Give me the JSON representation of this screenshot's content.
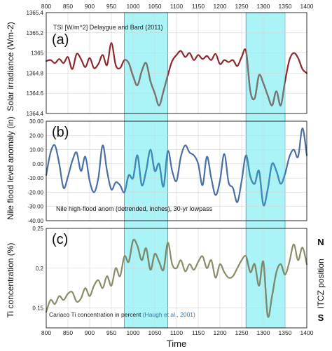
{
  "figure": {
    "x_axis_label": "Time",
    "x_ticks": [
      800,
      850,
      900,
      950,
      1000,
      1050,
      1100,
      1150,
      1200,
      1250,
      1300,
      1350,
      1400
    ],
    "shaded_periods": [
      [
        980,
        1080
      ],
      [
        1260,
        1350
      ]
    ],
    "colors": {
      "shade_fill": "#aaf3f6",
      "shade_edge": "#2aa6b5",
      "grid": "#d4d4d4",
      "frame": "#000000"
    },
    "itcz_label": "ITCZ position",
    "itcz_north": "N",
    "itcz_south": "S"
  },
  "chart_data": [
    {
      "type": "line",
      "panel_label": "(a)",
      "annotation": "TSI [W/m^2] Delaygue and Bard (2011)",
      "ylabel": "Solar irradiance (Wm-2)",
      "ylim": [
        1364.4,
        1365.4
      ],
      "yticks": [
        "1364.4",
        "1364.6",
        "1364.8",
        "1365",
        "1365.2",
        "1365.4"
      ],
      "ytick_values": [
        1364.4,
        1364.6,
        1364.8,
        1365,
        1365.2,
        1365.4
      ],
      "xlim": [
        800,
        1400
      ],
      "grid": true,
      "series": [
        {
          "color": "#8b2a2e",
          "highlight_color": "#767676",
          "x": [
            800,
            810,
            820,
            830,
            840,
            850,
            860,
            870,
            880,
            890,
            900,
            910,
            920,
            930,
            940,
            950,
            960,
            970,
            980,
            990,
            1000,
            1010,
            1020,
            1030,
            1040,
            1050,
            1060,
            1070,
            1080,
            1090,
            1100,
            1110,
            1120,
            1130,
            1140,
            1150,
            1160,
            1170,
            1180,
            1190,
            1200,
            1210,
            1220,
            1230,
            1240,
            1250,
            1260,
            1270,
            1280,
            1290,
            1300,
            1310,
            1320,
            1330,
            1340,
            1350,
            1360,
            1370,
            1380,
            1390,
            1400
          ],
          "y": [
            1364.92,
            1364.93,
            1364.9,
            1364.94,
            1364.9,
            1364.96,
            1364.84,
            1364.99,
            1364.94,
            1364.86,
            1364.95,
            1364.85,
            1364.89,
            1364.98,
            1364.88,
            1365.1,
            1364.88,
            1364.85,
            1364.93,
            1364.9,
            1364.77,
            1364.68,
            1364.82,
            1364.9,
            1364.72,
            1364.6,
            1364.48,
            1364.62,
            1364.78,
            1364.92,
            1364.98,
            1365.02,
            1364.96,
            1365.0,
            1364.93,
            1364.98,
            1364.94,
            1364.97,
            1364.93,
            1364.99,
            1364.89,
            1364.93,
            1364.91,
            1364.93,
            1364.87,
            1364.96,
            1365.02,
            1364.62,
            1364.55,
            1364.78,
            1364.7,
            1364.58,
            1364.48,
            1364.62,
            1364.48,
            1364.72,
            1364.93,
            1365.0,
            1364.95,
            1364.84,
            1364.8
          ]
        }
      ]
    },
    {
      "type": "line",
      "panel_label": "(b)",
      "annotation": "Nile high-flood anom (detrended, inches), 30-yr lowpass",
      "ylabel": "Nile flood level anomaly (in)",
      "ylim": [
        -40,
        30
      ],
      "yticks": [
        "-40.00",
        "-30.00",
        "-20.00",
        "-10.00",
        "0.00",
        "10.00",
        "20.00",
        "30.00"
      ],
      "ytick_values": [
        -40,
        -30,
        -20,
        -10,
        0,
        10,
        20,
        30
      ],
      "xlim": [
        800,
        1400
      ],
      "grid": true,
      "series": [
        {
          "color": "#4a6fa5",
          "highlight_color": "#3d8db8",
          "x": [
            800,
            810,
            820,
            830,
            840,
            850,
            860,
            870,
            880,
            890,
            900,
            910,
            920,
            930,
            940,
            950,
            960,
            970,
            980,
            990,
            1000,
            1010,
            1020,
            1030,
            1040,
            1050,
            1060,
            1070,
            1080,
            1090,
            1100,
            1110,
            1120,
            1130,
            1140,
            1150,
            1160,
            1170,
            1180,
            1190,
            1200,
            1210,
            1220,
            1230,
            1240,
            1250,
            1260,
            1270,
            1280,
            1290,
            1300,
            1310,
            1320,
            1330,
            1340,
            1350,
            1360,
            1370,
            1380,
            1390,
            1400
          ],
          "y": [
            -8,
            8,
            13,
            0,
            -17,
            -9,
            2,
            8,
            -5,
            5,
            -12,
            -20,
            -10,
            13,
            -5,
            -18,
            -13,
            -15,
            -20,
            -8,
            -10,
            6,
            -15,
            -5,
            10,
            -5,
            0,
            -16,
            9,
            -5,
            -12,
            5,
            13,
            8,
            6,
            0,
            -15,
            5,
            -10,
            -22,
            -12,
            7,
            -13,
            -17,
            -27,
            -12,
            6,
            -9,
            -14,
            -5,
            -29,
            -18,
            0,
            -5,
            -14,
            -7,
            5,
            10,
            5,
            25,
            6
          ]
        }
      ]
    },
    {
      "type": "line",
      "panel_label": "(c)",
      "annotation": "Cariaco Ti concentration in percent ",
      "annotation_source": "(Haugh et al., 2001)",
      "ylabel": "Ti concentration (%)",
      "ylim": [
        0.125,
        0.25
      ],
      "yticks": [
        "0.15",
        "0.2",
        "0.25"
      ],
      "ytick_values": [
        0.15,
        0.2,
        0.25
      ],
      "xlim": [
        800,
        1400
      ],
      "grid": true,
      "series": [
        {
          "color": "#8c8c6a",
          "highlight_color": "#7a8a70",
          "x": [
            800,
            810,
            820,
            830,
            840,
            850,
            860,
            870,
            880,
            890,
            900,
            910,
            920,
            930,
            940,
            950,
            960,
            970,
            980,
            990,
            1000,
            1010,
            1020,
            1030,
            1040,
            1050,
            1060,
            1070,
            1080,
            1090,
            1100,
            1110,
            1120,
            1130,
            1140,
            1150,
            1160,
            1170,
            1180,
            1190,
            1200,
            1210,
            1220,
            1230,
            1240,
            1250,
            1260,
            1270,
            1280,
            1290,
            1300,
            1310,
            1320,
            1330,
            1340,
            1350,
            1360,
            1370,
            1380,
            1390,
            1400
          ],
          "y": [
            0.145,
            0.16,
            0.155,
            0.165,
            0.16,
            0.168,
            0.17,
            0.158,
            0.162,
            0.175,
            0.165,
            0.178,
            0.185,
            0.175,
            0.19,
            0.178,
            0.2,
            0.19,
            0.215,
            0.208,
            0.235,
            0.228,
            0.21,
            0.225,
            0.198,
            0.218,
            0.208,
            0.198,
            0.232,
            0.205,
            0.2,
            0.21,
            0.196,
            0.205,
            0.198,
            0.208,
            0.215,
            0.2,
            0.21,
            0.188,
            0.205,
            0.195,
            0.188,
            0.19,
            0.2,
            0.21,
            0.215,
            0.195,
            0.205,
            0.178,
            0.208,
            0.14,
            0.165,
            0.195,
            0.205,
            0.192,
            0.208,
            0.23,
            0.21,
            0.226,
            0.205
          ]
        }
      ]
    }
  ]
}
